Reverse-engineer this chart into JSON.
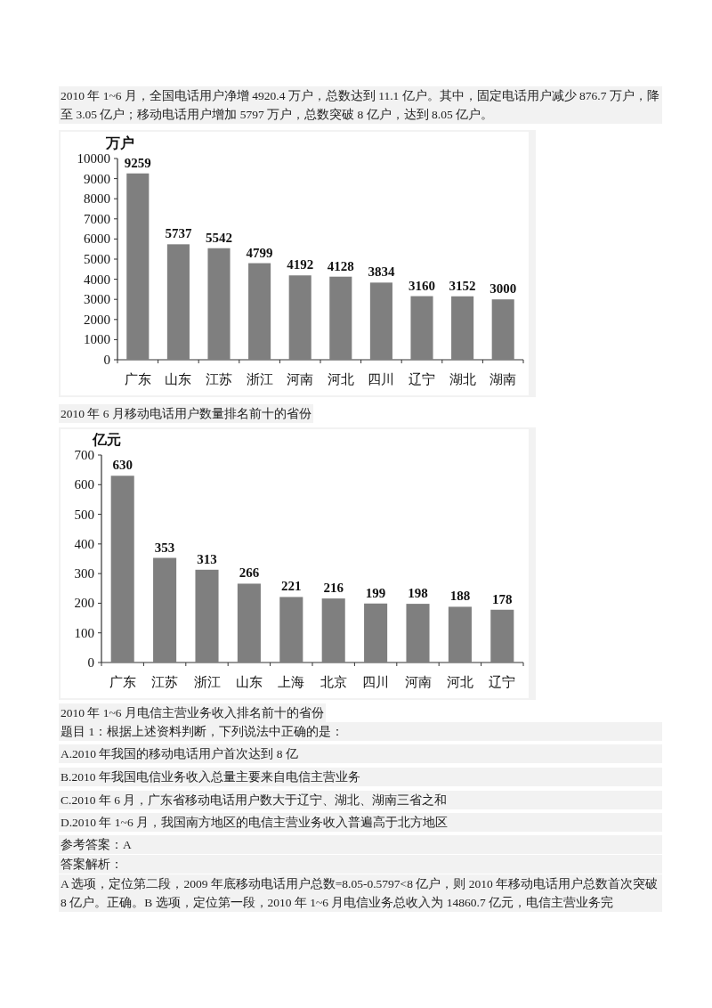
{
  "chart_data": [
    {
      "type": "bar",
      "annotations": [
        "2010 年 1~6 月，全国电话用户净增 4920.4 万户，总数达到 11.1 亿户。其中，固定电话用户减少 876.7 万户，降至 3.05 亿户；移动电话用户增加 5797 万户，总数突破 8 亿户，达到 8.05 亿户。"
      ],
      "title": "2010 年 6 月移动电话用户数量排名前十的省份",
      "ylabel": "万户",
      "categories": [
        "广东",
        "山东",
        "江苏",
        "浙江",
        "河南",
        "河北",
        "四川",
        "辽宁",
        "湖北",
        "湖南"
      ],
      "values": [
        9259,
        5737,
        5542,
        4799,
        4192,
        4128,
        3834,
        3160,
        3152,
        3000
      ],
      "color": "#7f7f7f",
      "ylim": [
        0,
        10000
      ],
      "yticks": [
        0,
        1000,
        2000,
        3000,
        4000,
        5000,
        6000,
        7000,
        8000,
        9000,
        10000
      ],
      "grid": false,
      "data_labels": true
    },
    {
      "type": "bar",
      "title": "2010 年 1~6 月电信主营业务收入排名前十的省份",
      "ylabel": "亿元",
      "categories": [
        "广东",
        "江苏",
        "浙江",
        "山东",
        "上海",
        "北京",
        "四川",
        "河南",
        "河北",
        "辽宁"
      ],
      "values": [
        630,
        353,
        313,
        266,
        221,
        216,
        199,
        198,
        188,
        178
      ],
      "color": "#7f7f7f",
      "ylim": [
        0,
        700
      ],
      "yticks": [
        0,
        100,
        200,
        300,
        400,
        500,
        600,
        700
      ],
      "grid": false,
      "data_labels": true,
      "annotations": [
        "题目 1：根据上述资料判断，下列说法中正确的是：",
        "A.2010 年我国的移动电话用户首次达到 8 亿",
        "B.2010 年我国电信业务收入总量主要来自电信主营业务",
        "C.2010 年 6 月，广东省移动电话用户数大于辽宁、湖北、湖南三省之和",
        "D.2010 年 1~6 月，我国南方地区的电信主营业务收入普遍高于北方地区",
        "参考答案：A",
        "答案解析：",
        "A 选项，定位第二段，2009 年底移动电话用户总数=8.05-0.5797<8 亿户，则 2010 年移动电话用户总数首次突破 8 亿户。正确。B 选项，定位第一段，2010 年 1~6 月电信业务总收入为 14860.7 亿元，电信主营业务完"
      ]
    }
  ]
}
